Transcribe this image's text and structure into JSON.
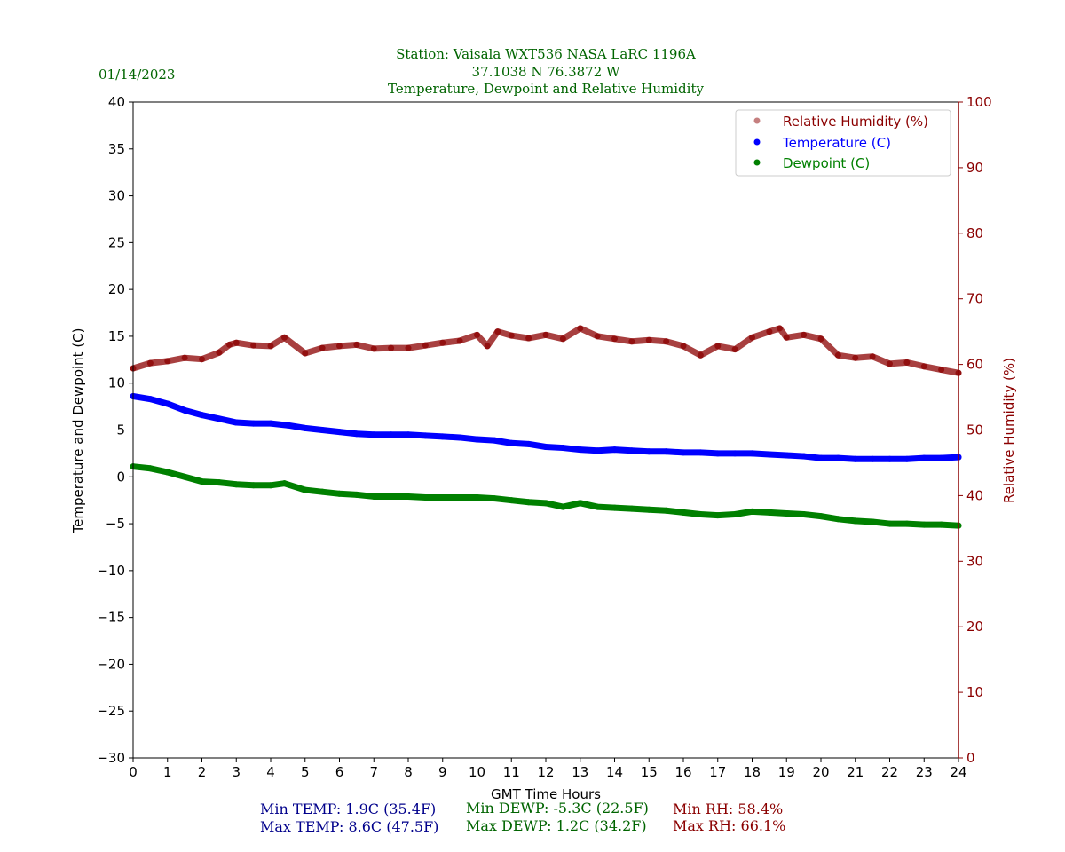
{
  "header": {
    "date": "01/14/2023",
    "line1": "Station:  Vaisala WXT536  NASA LaRC 1196A",
    "line2": "37.1038 N 76.3872 W",
    "line3": "Temperature, Dewpoint and Relative Humidity"
  },
  "stats": {
    "min_temp": "Min TEMP: 1.9C (35.4F)",
    "max_temp": "Max TEMP: 8.6C (47.5F)",
    "min_dewp": "Min DEWP: -5.3C (22.5F)",
    "max_dewp": "Max DEWP: 1.2C (34.2F)",
    "min_rh": "Min RH: 58.4%",
    "max_rh": "Max RH: 66.1%"
  },
  "colors": {
    "temp": "#0000ff",
    "dewp": "#008000",
    "rh": "#8b0000",
    "title": "#006400",
    "stat_temp": "#00008b"
  },
  "chart_data": {
    "type": "scatter",
    "xlabel": "GMT Time Hours",
    "ylabel": "Temperature and Dewpoint (C)",
    "y2label": "Relative Humidity (%)",
    "xlim": [
      0,
      24
    ],
    "ylim": [
      -30,
      40
    ],
    "y2lim": [
      0,
      100
    ],
    "xticks": [
      0,
      1,
      2,
      3,
      4,
      5,
      6,
      7,
      8,
      9,
      10,
      11,
      12,
      13,
      14,
      15,
      16,
      17,
      18,
      19,
      20,
      21,
      22,
      23,
      24
    ],
    "yticks": [
      -30,
      -25,
      -20,
      -15,
      -10,
      -5,
      0,
      5,
      10,
      15,
      20,
      25,
      30,
      35,
      40
    ],
    "y2ticks": [
      0,
      10,
      20,
      30,
      40,
      50,
      60,
      70,
      80,
      90,
      100
    ],
    "legend": {
      "position": "top-right",
      "entries": [
        "Relative Humidity (%)",
        "Temperature (C)",
        "Dewpoint (C)"
      ]
    },
    "series": [
      {
        "name": "Temperature (C)",
        "axis": "left",
        "x": [
          0,
          0.5,
          1,
          1.5,
          2,
          2.5,
          3,
          3.5,
          4,
          4.5,
          5,
          5.5,
          6,
          6.5,
          7,
          7.5,
          8,
          8.5,
          9,
          9.5,
          10,
          10.5,
          11,
          11.5,
          12,
          12.5,
          13,
          13.5,
          14,
          14.5,
          15,
          15.5,
          16,
          16.5,
          17,
          17.5,
          18,
          18.5,
          19,
          19.5,
          20,
          20.5,
          21,
          21.5,
          22,
          22.5,
          23,
          23.5,
          24
        ],
        "y": [
          8.6,
          8.3,
          7.8,
          7.1,
          6.6,
          6.2,
          5.8,
          5.7,
          5.7,
          5.5,
          5.2,
          5.0,
          4.8,
          4.6,
          4.5,
          4.5,
          4.5,
          4.4,
          4.3,
          4.2,
          4.0,
          3.9,
          3.6,
          3.5,
          3.2,
          3.1,
          2.9,
          2.8,
          2.9,
          2.8,
          2.7,
          2.7,
          2.6,
          2.6,
          2.5,
          2.5,
          2.5,
          2.4,
          2.3,
          2.2,
          2.0,
          2.0,
          1.9,
          1.9,
          1.9,
          1.9,
          2.0,
          2.0,
          2.1
        ]
      },
      {
        "name": "Dewpoint (C)",
        "axis": "left",
        "x": [
          0,
          0.5,
          1,
          1.5,
          2,
          2.5,
          3,
          3.5,
          4,
          4.4,
          5,
          5.5,
          6,
          6.5,
          7,
          7.5,
          8,
          8.5,
          9,
          9.5,
          10,
          10.5,
          11,
          11.5,
          12,
          12.5,
          13,
          13.5,
          14,
          14.5,
          15,
          15.5,
          16,
          16.5,
          17,
          17.5,
          18,
          18.5,
          19,
          19.5,
          20,
          20.5,
          21,
          21.5,
          22,
          22.5,
          23,
          23.5,
          24
        ],
        "y": [
          1.1,
          0.9,
          0.5,
          0.0,
          -0.5,
          -0.6,
          -0.8,
          -0.9,
          -0.9,
          -0.7,
          -1.4,
          -1.6,
          -1.8,
          -1.9,
          -2.1,
          -2.1,
          -2.1,
          -2.2,
          -2.2,
          -2.2,
          -2.2,
          -2.3,
          -2.5,
          -2.7,
          -2.8,
          -3.2,
          -2.8,
          -3.2,
          -3.3,
          -3.4,
          -3.5,
          -3.6,
          -3.8,
          -4.0,
          -4.1,
          -4.0,
          -3.7,
          -3.8,
          -3.9,
          -4.0,
          -4.2,
          -4.5,
          -4.7,
          -4.8,
          -5.0,
          -5.0,
          -5.1,
          -5.1,
          -5.2
        ]
      },
      {
        "name": "Relative Humidity (%)",
        "axis": "right",
        "x": [
          0,
          0.5,
          1,
          1.5,
          2,
          2.5,
          2.8,
          3,
          3.5,
          4,
          4.4,
          5,
          5.5,
          6,
          6.5,
          7,
          7.5,
          8,
          8.5,
          9,
          9.5,
          10,
          10.3,
          10.6,
          11,
          11.5,
          12,
          12.5,
          13,
          13.5,
          14,
          14.5,
          15,
          15.5,
          16,
          16.5,
          17,
          17.5,
          18,
          18.5,
          18.8,
          19,
          19.5,
          20,
          20.5,
          21,
          21.5,
          22,
          22.5,
          23,
          23.5,
          24
        ],
        "y": [
          59.4,
          60.2,
          60.5,
          61.0,
          60.8,
          61.8,
          63.0,
          63.3,
          62.9,
          62.8,
          64.1,
          61.7,
          62.5,
          62.8,
          63.0,
          62.4,
          62.5,
          62.5,
          62.9,
          63.3,
          63.6,
          64.5,
          62.8,
          65.0,
          64.4,
          64.0,
          64.5,
          63.9,
          65.5,
          64.3,
          63.9,
          63.5,
          63.7,
          63.5,
          62.8,
          61.4,
          62.8,
          62.3,
          64.1,
          65.0,
          65.5,
          64.1,
          64.5,
          63.9,
          61.4,
          61.0,
          61.2,
          60.1,
          60.3,
          59.7,
          59.2,
          58.7
        ]
      }
    ]
  }
}
